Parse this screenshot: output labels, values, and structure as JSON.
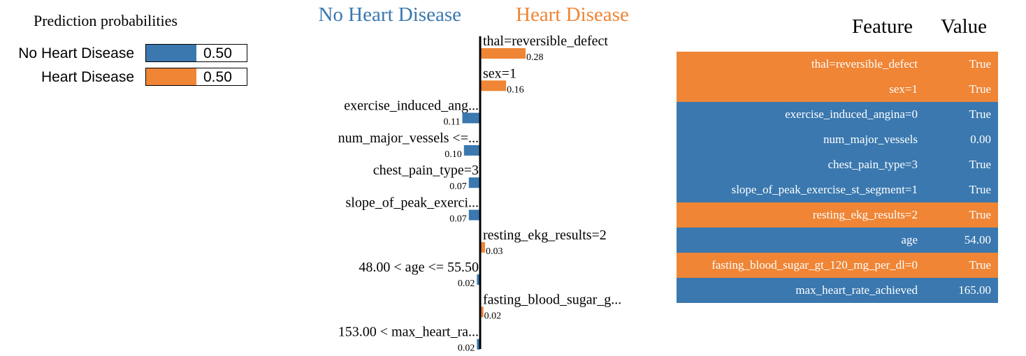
{
  "colors": {
    "negative": "#3a78af",
    "positive": "#ef8535"
  },
  "proba": {
    "title": "Prediction probabilities",
    "rows": [
      {
        "label": "No Heart Disease",
        "value": 0.5,
        "value_text": "0.50",
        "color": "#3a78af"
      },
      {
        "label": "Heart Disease",
        "value": 0.5,
        "value_text": "0.50",
        "color": "#ef8535"
      }
    ]
  },
  "table": {
    "header_feature": "Feature",
    "header_value": "Value",
    "rows": [
      {
        "feature": "thal=reversible_defect",
        "value": "True",
        "class": "positive"
      },
      {
        "feature": "sex=1",
        "value": "True",
        "class": "positive"
      },
      {
        "feature": "exercise_induced_angina=0",
        "value": "True",
        "class": "negative"
      },
      {
        "feature": "num_major_vessels",
        "value": "0.00",
        "class": "negative"
      },
      {
        "feature": "chest_pain_type=3",
        "value": "True",
        "class": "negative"
      },
      {
        "feature": "slope_of_peak_exercise_st_segment=1",
        "value": "True",
        "class": "negative"
      },
      {
        "feature": "resting_ekg_results=2",
        "value": "True",
        "class": "positive"
      },
      {
        "feature": "age",
        "value": "54.00",
        "class": "negative"
      },
      {
        "feature": "fasting_blood_sugar_gt_120_mg_per_dl=0",
        "value": "True",
        "class": "positive"
      },
      {
        "feature": "max_heart_rate_achieved",
        "value": "165.00",
        "class": "negative"
      }
    ]
  },
  "chart_data": {
    "type": "bar",
    "orientation": "horizontal",
    "class_names": [
      "No Heart Disease",
      "Heart Disease"
    ],
    "bars": [
      {
        "label": "thal=reversible_defect",
        "weight": 0.28,
        "value_label": "0.28",
        "class": "Heart Disease"
      },
      {
        "label": "sex=1",
        "weight": 0.16,
        "value_label": "0.16",
        "class": "Heart Disease"
      },
      {
        "label": "exercise_induced_ang...",
        "weight": -0.11,
        "value_label": "0.11",
        "class": "No Heart Disease"
      },
      {
        "label": "num_major_vessels <=...",
        "weight": -0.1,
        "value_label": "0.10",
        "class": "No Heart Disease"
      },
      {
        "label": "chest_pain_type=3",
        "weight": -0.07,
        "value_label": "0.07",
        "class": "No Heart Disease"
      },
      {
        "label": "slope_of_peak_exerci...",
        "weight": -0.07,
        "value_label": "0.07",
        "class": "No Heart Disease"
      },
      {
        "label": "resting_ekg_results=2",
        "weight": 0.03,
        "value_label": "0.03",
        "class": "Heart Disease"
      },
      {
        "label": "48.00 < age <= 55.50",
        "weight": -0.02,
        "value_label": "0.02",
        "class": "No Heart Disease"
      },
      {
        "label": "fasting_blood_sugar_g...",
        "weight": 0.02,
        "value_label": "0.02",
        "class": "Heart Disease"
      },
      {
        "label": "153.00 < max_heart_ra...",
        "weight": -0.02,
        "value_label": "0.02",
        "class": "No Heart Disease"
      }
    ]
  }
}
